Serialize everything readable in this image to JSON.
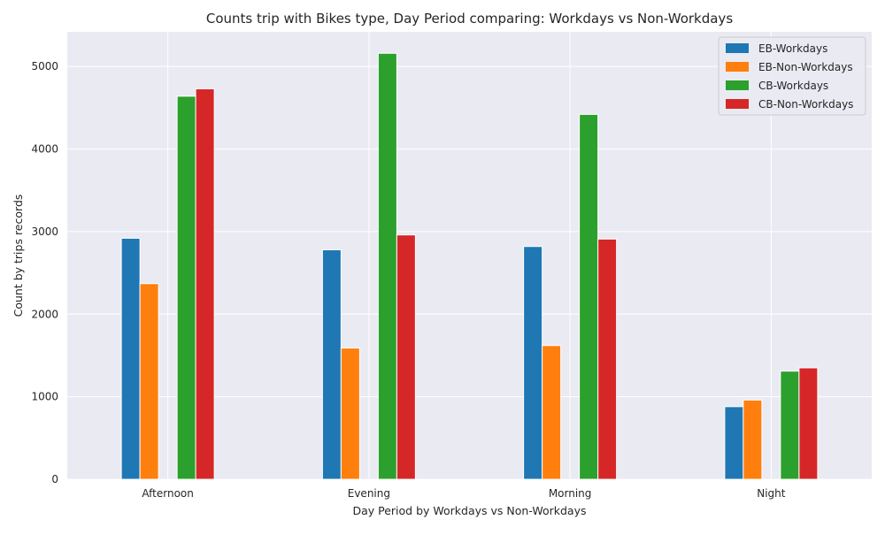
{
  "chart_data": {
    "type": "bar",
    "title": "Counts trip with Bikes type, Day Period comparing: Workdays vs Non-Workdays",
    "xlabel": "Day Period by Workdays vs Non-Workdays",
    "ylabel": "Count by trips records",
    "categories": [
      "Afternoon",
      "Evening",
      "Morning",
      "Night"
    ],
    "ylim": [
      0,
      5420
    ],
    "yticks": [
      0,
      1000,
      2000,
      3000,
      4000,
      5000
    ],
    "grid": true,
    "legend_position": "top-right",
    "series": [
      {
        "name": "EB-Workdays",
        "color": "#1f77b4",
        "values": [
          2920,
          2780,
          2820,
          880
        ]
      },
      {
        "name": "EB-Non-Workdays",
        "color": "#ff7f0e",
        "values": [
          2370,
          1590,
          1620,
          960
        ]
      },
      {
        "name": "CB-Workdays",
        "color": "#2ca02c",
        "values": [
          4640,
          5160,
          4420,
          1310
        ]
      },
      {
        "name": "CB-Non-Workdays",
        "color": "#d62728",
        "values": [
          4730,
          2960,
          2910,
          1350
        ]
      }
    ]
  }
}
